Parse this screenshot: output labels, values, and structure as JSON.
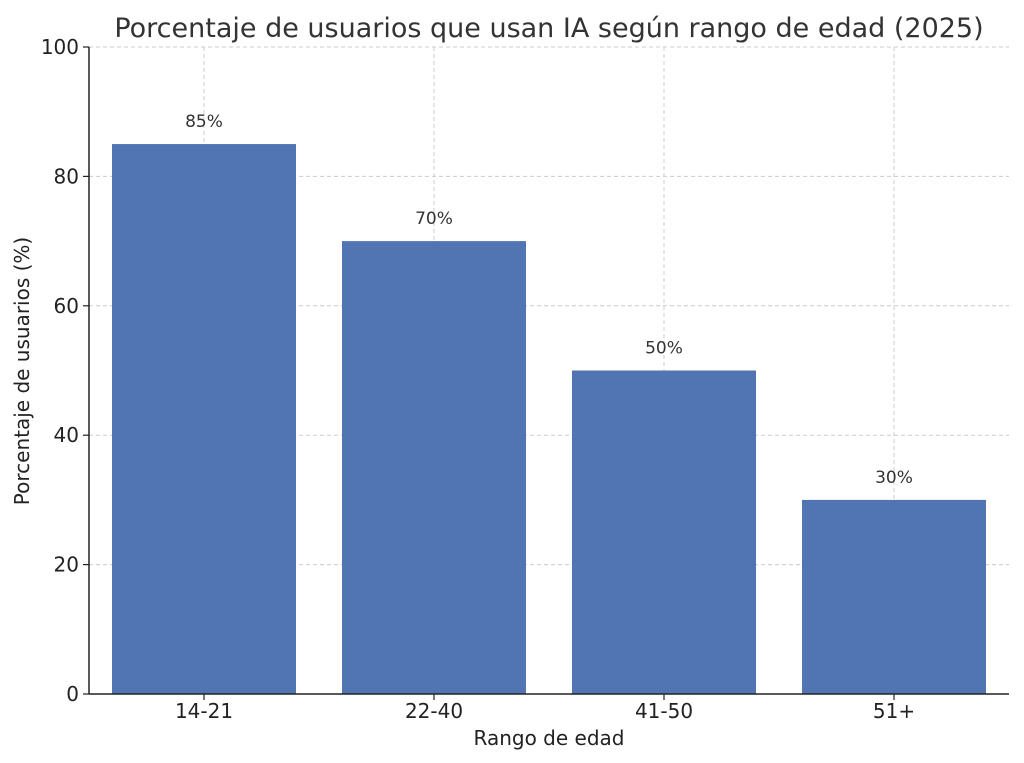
{
  "chart_data": {
    "type": "bar",
    "title": "Porcentaje de usuarios que usan IA según rango de edad (2025)",
    "xlabel": "Rango de edad",
    "ylabel": "Porcentaje de usuarios (%)",
    "categories": [
      "14-21",
      "22-40",
      "41-50",
      "51+"
    ],
    "values": [
      85,
      70,
      50,
      30
    ],
    "data_labels": [
      "85%",
      "70%",
      "50%",
      "30%"
    ],
    "ylim": [
      0,
      100
    ],
    "yticks": [
      0,
      20,
      40,
      60,
      80,
      100
    ],
    "grid": true,
    "bar_color": "#4c72b0"
  }
}
